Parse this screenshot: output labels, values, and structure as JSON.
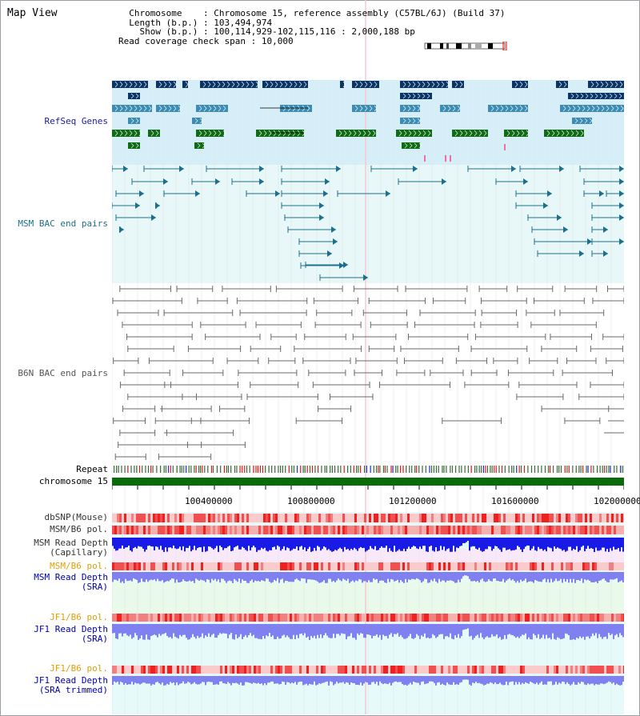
{
  "header": {
    "title": "Map View",
    "chromosome_label": "Chromosome",
    "chromosome_value": "Chromosome 15, reference assembly (C57BL/6J) (Build 37)",
    "length_label": "Length (b.p.)",
    "length_value": "103,494,974",
    "show_label": "Show (b.p.)",
    "show_value": "100,114,929-102,115,116 : 2,000,188 bp",
    "coverage_label": "Read coverage check span",
    "coverage_value": "10,000"
  },
  "tracks": {
    "refseq": "RefSeq Genes",
    "msm_bac": "MSM BAC end pairs",
    "b6n_bac": "B6N BAC end pairs",
    "repeat": "Repeat",
    "chromosome": "chromosome 15",
    "dbsnp": "dbSNP(Mouse)",
    "msm_b6_pol_1": "MSM/B6 pol.",
    "msm_depth_cap_1": "MSM Read Depth",
    "msm_depth_cap_2": "(Capillary)",
    "msm_b6_pol_2": "MSM/B6 pol.",
    "msm_depth_sra_1": "MSM Read Depth",
    "msm_depth_sra_2": "(SRA)",
    "jf1_pol_1": "JF1/B6 pol.",
    "jf1_depth_sra_1": "JF1 Read Depth",
    "jf1_depth_sra_2": "(SRA)",
    "jf1_pol_2": "JF1/B6 pol.",
    "jf1_depth_trim_1": "JF1 Read Depth",
    "jf1_depth_trim_2": "(SRA trimmed)"
  },
  "axis": {
    "ticks": [
      "100400000",
      "100800000",
      "101200000",
      "101600000",
      "102000000"
    ]
  },
  "colors": {
    "refseq_bg": "#d6eef8",
    "msm_bg": "#e8f8f8",
    "gene_dark": "#0b3566",
    "gene_mid": "#3c8cb4",
    "gene_green": "#0f6b14",
    "msm_line": "#1e6f8c",
    "b6n_line": "#6a6a6a",
    "chromosome_bar": "#0b6b0b",
    "depth_blue": "#1a1ae6",
    "depth_light": "#8080f0"
  }
}
